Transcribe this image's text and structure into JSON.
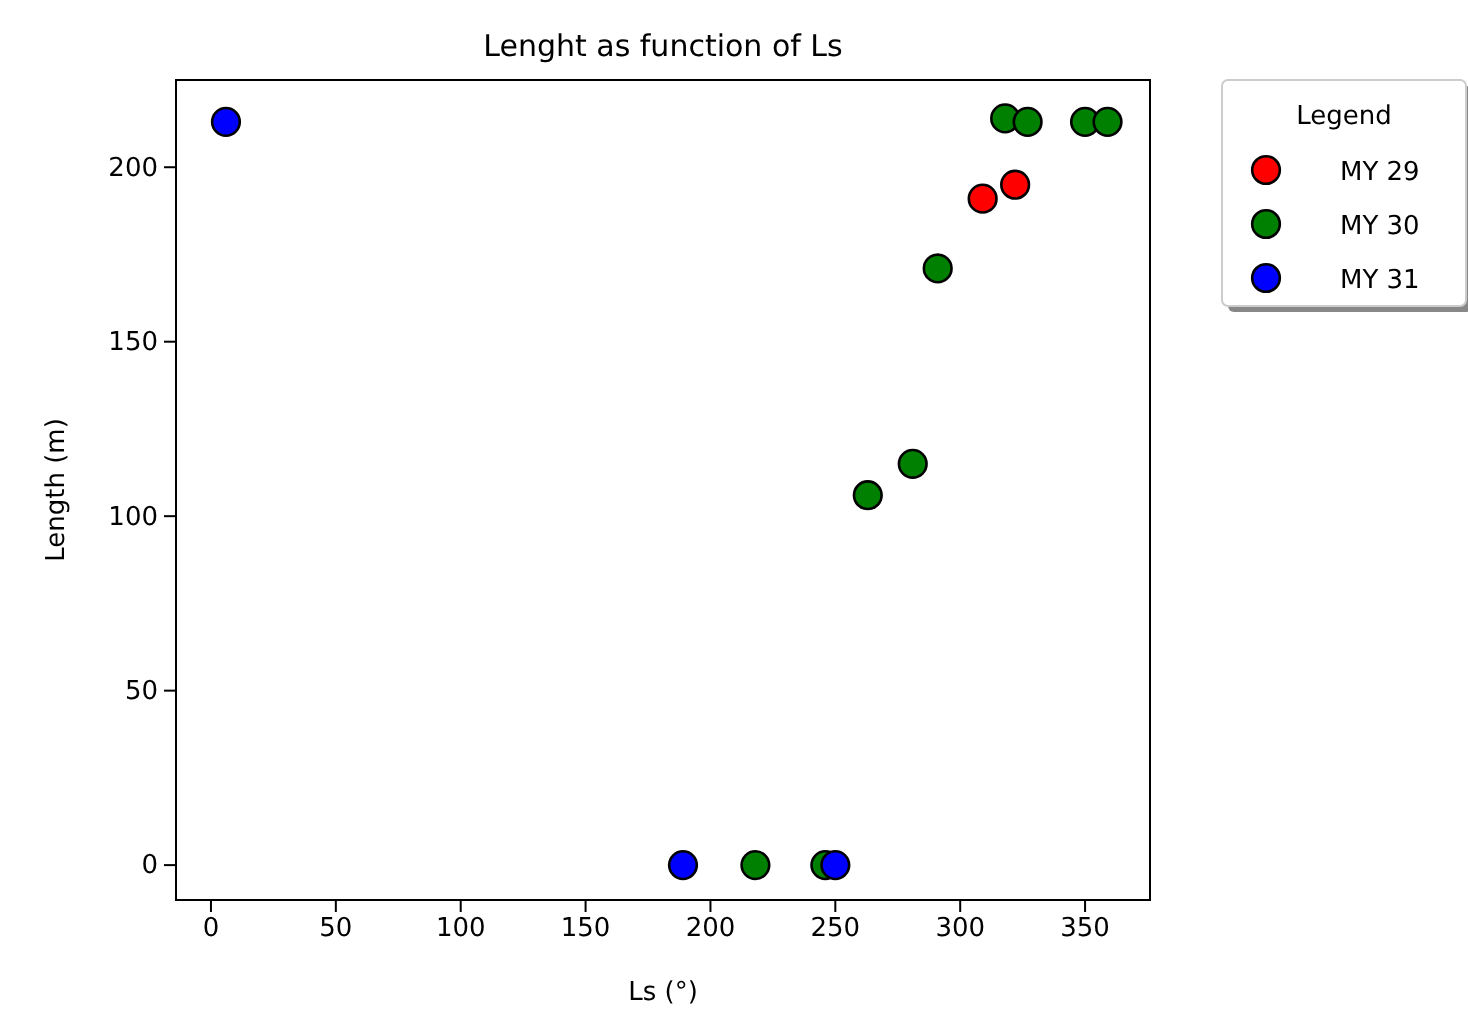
{
  "chart_data": {
    "type": "scatter",
    "title": "Lenght as function of Ls",
    "xlabel": "Ls (°)",
    "ylabel": "Length (m)",
    "legend_title": "Legend",
    "legend": "top right",
    "marker": "circle",
    "grid": false,
    "xlim": [
      -14,
      376
    ],
    "ylim": [
      -10,
      225
    ],
    "xticks": [
      0,
      50,
      100,
      150,
      200,
      250,
      300,
      350
    ],
    "yticks": [
      0,
      50,
      100,
      150,
      200
    ],
    "series": [
      {
        "name": "MY 29",
        "color": "#ff0000",
        "x": [
          309,
          322
        ],
        "values": [
          191,
          195
        ]
      },
      {
        "name": "MY 30",
        "color": "#008000",
        "x": [
          318,
          327,
          350,
          359,
          291,
          281,
          263,
          218,
          246
        ],
        "values": [
          214,
          213,
          213,
          213,
          171,
          115,
          106,
          0,
          0
        ]
      },
      {
        "name": "MY 31",
        "color": "#0000ff",
        "x": [
          6,
          189,
          250
        ],
        "values": [
          213,
          0,
          0
        ]
      }
    ]
  }
}
